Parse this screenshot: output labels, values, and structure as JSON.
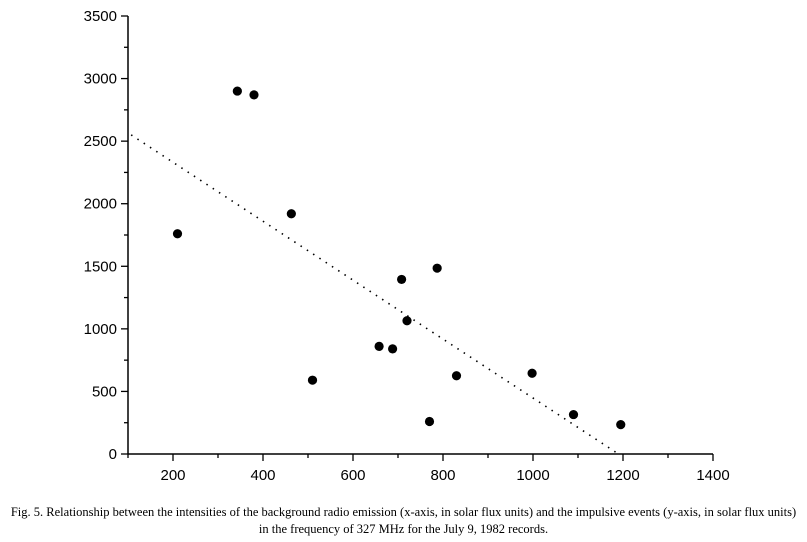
{
  "chart_data": {
    "type": "scatter",
    "title": "",
    "xlabel": "",
    "ylabel": "",
    "xlim": [
      100,
      1400
    ],
    "ylim": [
      0,
      3500
    ],
    "x_ticks": [
      200,
      400,
      600,
      800,
      1000,
      1200,
      1400
    ],
    "y_ticks": [
      0,
      500,
      1000,
      1500,
      2000,
      2500,
      3000,
      3500
    ],
    "points": [
      {
        "x": 210,
        "y": 1760
      },
      {
        "x": 343,
        "y": 2900
      },
      {
        "x": 380,
        "y": 2870
      },
      {
        "x": 463,
        "y": 1920
      },
      {
        "x": 510,
        "y": 590
      },
      {
        "x": 658,
        "y": 860
      },
      {
        "x": 688,
        "y": 840
      },
      {
        "x": 708,
        "y": 1395
      },
      {
        "x": 720,
        "y": 1065
      },
      {
        "x": 770,
        "y": 260
      },
      {
        "x": 787,
        "y": 1485
      },
      {
        "x": 830,
        "y": 625
      },
      {
        "x": 998,
        "y": 645
      },
      {
        "x": 1090,
        "y": 315
      },
      {
        "x": 1195,
        "y": 235
      }
    ],
    "trendline": {
      "style": "dotted",
      "from": {
        "x": 107,
        "y": 2550
      },
      "to": {
        "x": 1190,
        "y": 0
      }
    }
  },
  "caption": "Fig. 5. Relationship between the intensities of the background radio emission (x-axis, in solar flux units) and the impulsive events (y-axis, in solar flux units) in the frequency of 327 MHz for the July 9, 1982 records."
}
